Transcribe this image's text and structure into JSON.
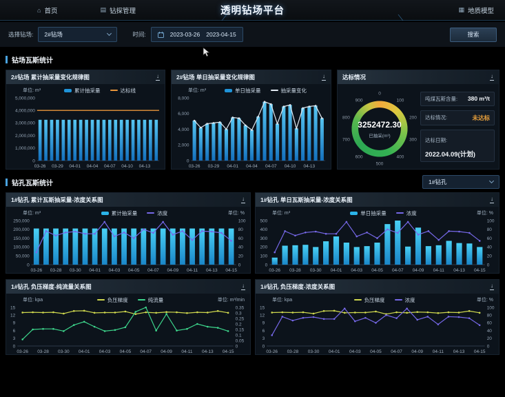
{
  "nav": {
    "title": "透明钻场平台",
    "items": [
      {
        "label": "首页",
        "icon": "home-icon",
        "glyph": "⌂"
      },
      {
        "label": "钻探管理",
        "icon": "drill-manage-icon",
        "glyph": "▤"
      }
    ],
    "right_items": [
      {
        "label": "地质模型",
        "icon": "geo-model-icon",
        "glyph": "▦"
      }
    ]
  },
  "filters": {
    "site_label": "选择钻场:",
    "site_value": "2#钻场",
    "time_label": "时间:",
    "date_start": "2023-03-26",
    "date_end": "2023-04-15",
    "search_label": "搜索"
  },
  "sections": {
    "site_stats_title": "钻场瓦斯统计",
    "hole_stats_title": "钻孔瓦斯统计",
    "hole_select_value": "1#钻孔"
  },
  "gauge": {
    "title": "达标情况",
    "value": "3252472.30",
    "label": "已抽采(m³)",
    "ticks": [
      0,
      100,
      200,
      300,
      400,
      500,
      600,
      700,
      800,
      900
    ],
    "ring_colors": [
      "#f2a93c",
      "#ddc93f",
      "#57bb4e",
      "#2da753",
      "#56b84e",
      "#c9c542"
    ],
    "info": [
      {
        "label": "吨煤瓦斯含量:",
        "value": "380 m³/t",
        "color": "#f2f6fa"
      },
      {
        "label": "达标情况:",
        "value": "未达标",
        "color": "#e8a03c"
      },
      {
        "label": "达标日期:",
        "value": "2022.04.09(计划)",
        "color": "#f2f6fa"
      }
    ]
  },
  "chart_data": [
    {
      "type": "bar",
      "title": "2#钻场 累计抽采量变化规律图",
      "unit_left": "单位: m³",
      "unit_right": "",
      "x": [
        "03-26",
        "03-27",
        "03-28",
        "03-29",
        "03-30",
        "03-31",
        "04-01",
        "04-02",
        "04-03",
        "04-04",
        "04-05",
        "04-06",
        "04-07",
        "04-08",
        "04-09",
        "04-10",
        "04-11",
        "04-12",
        "04-13",
        "04-14",
        "04-15"
      ],
      "x_tick_every": 3,
      "ylim": [
        0,
        5000000
      ],
      "yticks": [
        0,
        1000000,
        2000000,
        3000000,
        4000000,
        5000000
      ],
      "y_format": "comma",
      "series": [
        {
          "name": "累计抽采量",
          "type": "bar",
          "color": "#1f93d8",
          "color_top": "#57c6f2",
          "color_bottom": "#1470bd",
          "values": [
            3252472,
            3252472,
            3252472,
            3252472,
            3252472,
            3252472,
            3252472,
            3252472,
            3252472,
            3252472,
            3252472,
            3252472,
            3252472,
            3252472,
            3252472,
            3252472,
            3252472,
            3252472,
            3252472,
            3252472,
            3252472
          ]
        },
        {
          "name": "达标线",
          "type": "refline",
          "color": "#e8953a",
          "value": 4000000
        }
      ]
    },
    {
      "type": "bar",
      "title": "2#钻场 单日抽采量变化规律图",
      "unit_left": "单位: m³",
      "unit_right": "",
      "x": [
        "03-26",
        "03-27",
        "03-28",
        "03-29",
        "03-30",
        "03-31",
        "04-01",
        "04-02",
        "04-03",
        "04-04",
        "04-05",
        "04-06",
        "04-07",
        "04-08",
        "04-09",
        "04-10",
        "04-11",
        "04-12",
        "04-13",
        "04-14",
        "04-15"
      ],
      "x_tick_every": 3,
      "ylim": [
        0,
        8000
      ],
      "yticks": [
        0,
        2000,
        4000,
        6000,
        8000
      ],
      "y_format": "comma",
      "series": [
        {
          "name": "单日抽采量",
          "type": "bar",
          "color": "#1f93d8",
          "color_top": "#57c6f2",
          "color_bottom": "#1470bd",
          "values": [
            5100,
            4200,
            4700,
            4800,
            4900,
            4000,
            5500,
            5400,
            4500,
            3900,
            5600,
            7500,
            7200,
            4700,
            6900,
            7100,
            4100,
            6700,
            6900,
            7000,
            5400
          ]
        },
        {
          "name": "抽采量变化",
          "type": "line",
          "color": "#e2eaf2",
          "values": [
            5100,
            4200,
            4700,
            4800,
            4900,
            4000,
            5500,
            5400,
            4500,
            3900,
            5600,
            7500,
            7200,
            4700,
            6900,
            7100,
            4100,
            6700,
            6900,
            7000,
            5400
          ]
        }
      ]
    },
    {
      "type": "bar",
      "title": "1#钻孔 累计瓦斯抽采量-浓度关系图",
      "unit_left": "单位: m³",
      "unit_right": "单位: %",
      "x": [
        "03-26",
        "03-27",
        "03-28",
        "03-29",
        "03-30",
        "03-31",
        "04-01",
        "04-02",
        "04-03",
        "04-04",
        "04-05",
        "04-06",
        "04-07",
        "04-08",
        "04-09",
        "04-10",
        "04-11",
        "04-12",
        "04-13",
        "04-14",
        "04-15"
      ],
      "x_tick_every": 2,
      "ylim": [
        0,
        250000
      ],
      "yticks": [
        0,
        50000,
        100000,
        150000,
        200000,
        250000
      ],
      "y_format": "comma",
      "y2lim": [
        0,
        100
      ],
      "y2ticks": [
        0,
        20,
        40,
        60,
        80,
        100
      ],
      "series": [
        {
          "name": "累计抽采量",
          "type": "bar",
          "color": "#2bb3e8",
          "color_top": "#49d0f5",
          "color_bottom": "#1a86c8",
          "values": [
            205000,
            205000,
            205000,
            205000,
            205000,
            205000,
            205000,
            205000,
            205000,
            205000,
            205000,
            205000,
            205000,
            205000,
            205000,
            205000,
            205000,
            205000,
            205000,
            205000,
            205000
          ]
        },
        {
          "name": "浓度",
          "type": "line",
          "axis": "right",
          "color": "#7668e8",
          "values": [
            28,
            76,
            66,
            73,
            75,
            70,
            70,
            97,
            64,
            73,
            60,
            80,
            72,
            97,
            68,
            76,
            56,
            76,
            75,
            72,
            54
          ]
        }
      ]
    },
    {
      "type": "bar",
      "title": "1#钻孔 单日瓦斯抽采量-浓度关系图",
      "unit_left": "单位: m³",
      "unit_right": "单位: %",
      "x": [
        "03-26",
        "03-27",
        "03-28",
        "03-29",
        "03-30",
        "03-31",
        "04-01",
        "04-02",
        "04-03",
        "04-04",
        "04-05",
        "04-06",
        "04-07",
        "04-08",
        "04-09",
        "04-10",
        "04-11",
        "04-12",
        "04-13",
        "04-14",
        "04-15"
      ],
      "x_tick_every": 2,
      "ylim": [
        0,
        500
      ],
      "yticks": [
        0,
        100,
        200,
        300,
        400,
        500
      ],
      "y_format": "comma",
      "y2lim": [
        0,
        100
      ],
      "y2ticks": [
        0,
        20,
        40,
        60,
        80,
        100
      ],
      "series": [
        {
          "name": "单日抽采量",
          "type": "bar",
          "color": "#2bb3e8",
          "color_top": "#49d0f5",
          "color_bottom": "#1a86c8",
          "values": [
            80,
            215,
            220,
            225,
            200,
            265,
            320,
            250,
            200,
            210,
            250,
            460,
            500,
            205,
            420,
            210,
            220,
            270,
            245,
            240,
            200
          ]
        },
        {
          "name": "浓度",
          "type": "line",
          "axis": "right",
          "color": "#7668e8",
          "values": [
            28,
            76,
            66,
            73,
            75,
            70,
            70,
            97,
            64,
            73,
            60,
            80,
            72,
            97,
            68,
            76,
            56,
            76,
            75,
            72,
            54
          ]
        }
      ]
    },
    {
      "type": "line",
      "title": "1#钻孔 负压梯度-纯流量关系图",
      "unit_left": "单位: kpa",
      "unit_right": "单位: m³/min",
      "x": [
        "03-26",
        "03-27",
        "03-28",
        "03-29",
        "03-30",
        "03-31",
        "04-01",
        "04-02",
        "04-03",
        "04-04",
        "04-05",
        "04-06",
        "04-07",
        "04-08",
        "04-09",
        "04-10",
        "04-11",
        "04-12",
        "04-13",
        "04-14",
        "04-15"
      ],
      "x_tick_every": 2,
      "ylim": [
        0,
        15
      ],
      "yticks": [
        0,
        3,
        6,
        9,
        12,
        15
      ],
      "y_format": "plain",
      "y2lim": [
        0,
        0.35
      ],
      "y2ticks": [
        0,
        0.05,
        0.1,
        0.15,
        0.2,
        0.25,
        0.3,
        0.35
      ],
      "series": [
        {
          "name": "负压梯度",
          "type": "line",
          "color": "#cfd84e",
          "values": [
            13,
            13.1,
            13,
            13.1,
            12.6,
            13.6,
            13.7,
            12.9,
            13,
            13,
            13.4,
            12.4,
            13.1,
            12.9,
            13.2,
            13.1,
            12.8,
            13.1,
            13,
            13.6,
            12.9
          ]
        },
        {
          "name": "纯流量",
          "type": "line",
          "axis": "right",
          "color": "#3dd68c",
          "values": [
            0.06,
            0.15,
            0.155,
            0.155,
            0.135,
            0.19,
            0.22,
            0.175,
            0.135,
            0.145,
            0.17,
            0.31,
            0.35,
            0.14,
            0.29,
            0.14,
            0.155,
            0.2,
            0.175,
            0.165,
            0.135
          ]
        }
      ]
    },
    {
      "type": "line",
      "title": "1#钻孔 负压梯度-浓度关系图",
      "unit_left": "单位: kpa",
      "unit_right": "单位: %",
      "x": [
        "03-26",
        "03-27",
        "03-28",
        "03-29",
        "03-30",
        "03-31",
        "04-01",
        "04-02",
        "04-03",
        "04-04",
        "04-05",
        "04-06",
        "04-07",
        "04-08",
        "04-09",
        "04-10",
        "04-11",
        "04-12",
        "04-13",
        "04-14",
        "04-15"
      ],
      "x_tick_every": 2,
      "ylim": [
        0,
        15
      ],
      "yticks": [
        0,
        3,
        6,
        9,
        12,
        15
      ],
      "y_format": "plain",
      "y2lim": [
        0,
        100
      ],
      "y2ticks": [
        0,
        20,
        40,
        60,
        80,
        100
      ],
      "series": [
        {
          "name": "负压梯度",
          "type": "line",
          "color": "#cfd84e",
          "values": [
            13,
            13.1,
            13,
            13.1,
            12.6,
            13.6,
            13.7,
            12.9,
            13,
            13,
            13.4,
            12.4,
            13.1,
            12.9,
            13.2,
            13.1,
            12.8,
            13.1,
            13,
            13.6,
            12.9
          ]
        },
        {
          "name": "浓度",
          "type": "line",
          "axis": "right",
          "color": "#7668e8",
          "values": [
            28,
            76,
            66,
            73,
            75,
            70,
            70,
            97,
            64,
            73,
            60,
            80,
            72,
            97,
            68,
            76,
            56,
            76,
            75,
            72,
            54
          ]
        }
      ]
    }
  ]
}
